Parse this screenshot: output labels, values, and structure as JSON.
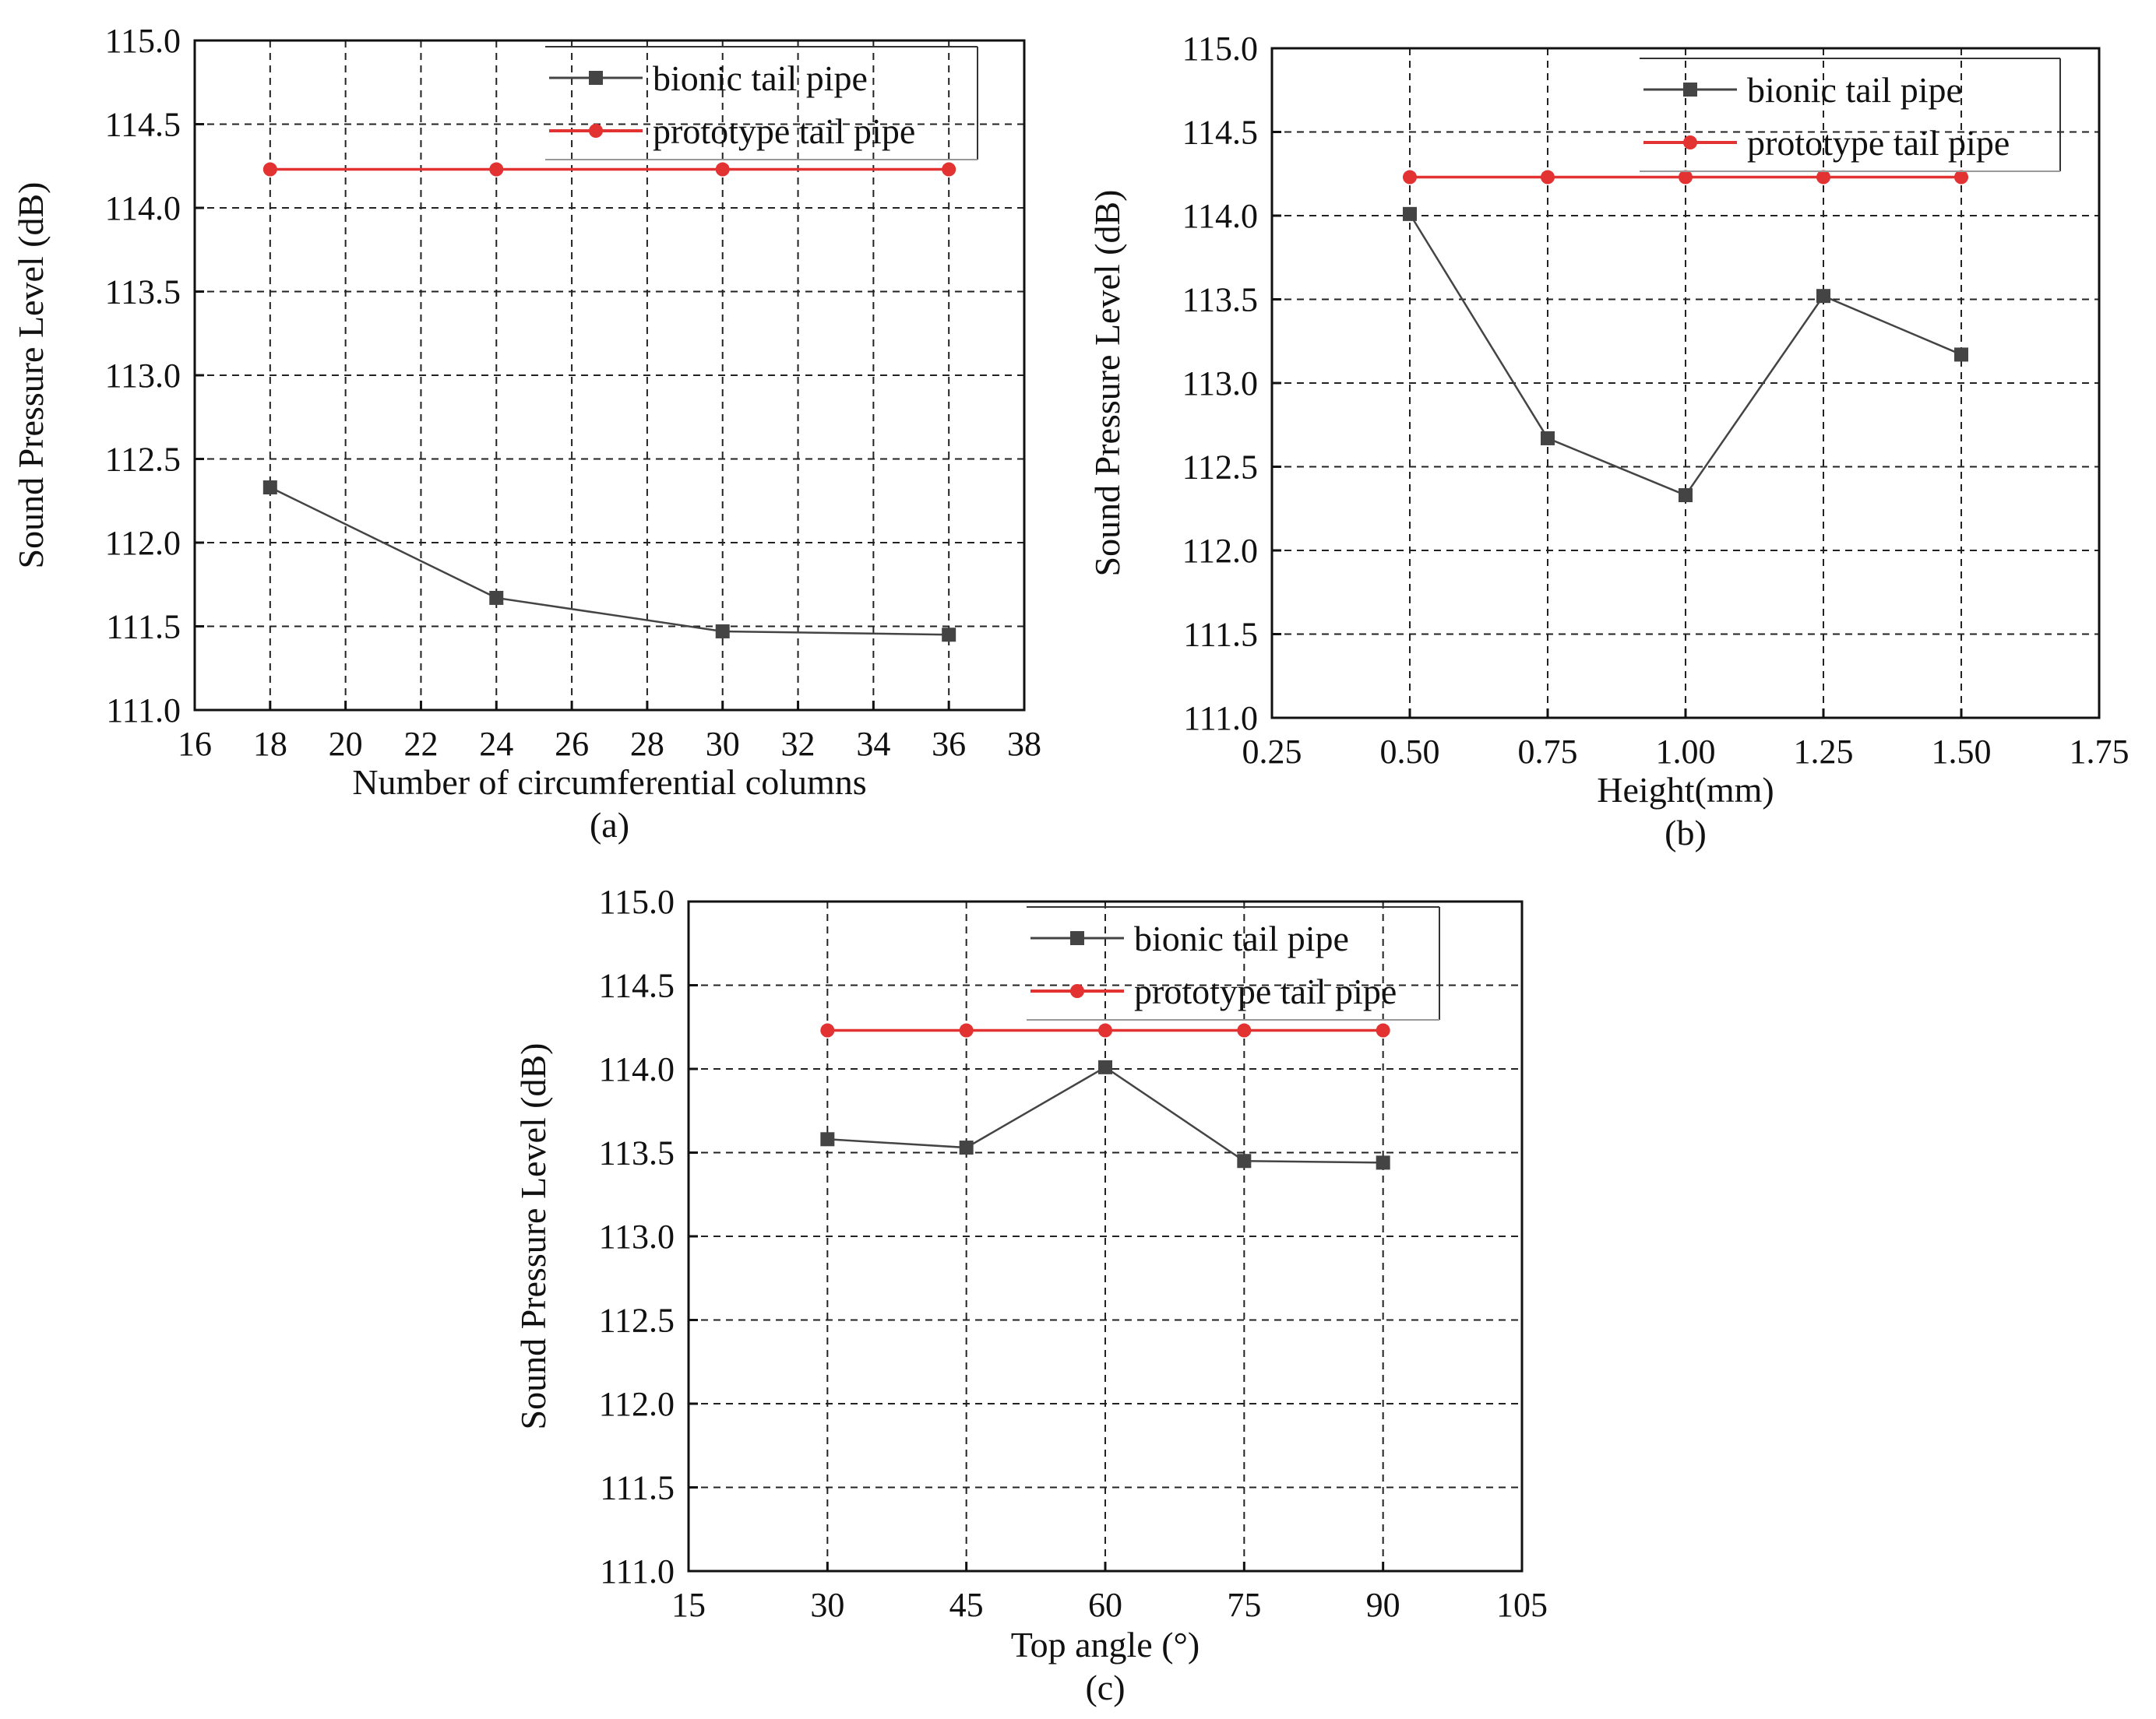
{
  "colors": {
    "bionic": "#444444",
    "prototype": "#e23232"
  },
  "chart_data": [
    {
      "type": "line",
      "panel_label": "(a)",
      "xlabel": "Number of circumferential columns",
      "ylabel": "Sound Pressure Level (dB)",
      "xlim": [
        16,
        38
      ],
      "ylim": [
        111.0,
        115.0
      ],
      "xticks": [
        "16",
        "18",
        "20",
        "22",
        "24",
        "26",
        "28",
        "30",
        "32",
        "34",
        "36",
        "38"
      ],
      "yticks": [
        "111.0",
        "111.5",
        "112.0",
        "112.5",
        "113.0",
        "113.5",
        "114.0",
        "114.5",
        "115.0"
      ],
      "x": [
        18,
        24,
        30,
        36
      ],
      "series": [
        {
          "name": "bionic tail pipe",
          "values": [
            112.33,
            111.67,
            111.47,
            111.45
          ]
        },
        {
          "name": "prototype tail pipe",
          "values": [
            114.23,
            114.23,
            114.23,
            114.23
          ]
        }
      ],
      "legend": "top-right"
    },
    {
      "type": "line",
      "panel_label": "(b)",
      "xlabel": "Height(mm)",
      "ylabel": "Sound Pressure Level (dB)",
      "xlim": [
        0.25,
        1.75
      ],
      "ylim": [
        111.0,
        115.0
      ],
      "xticks": [
        "0.25",
        "0.50",
        "0.75",
        "1.00",
        "1.25",
        "1.50",
        "1.75"
      ],
      "yticks": [
        "111.0",
        "111.5",
        "112.0",
        "112.5",
        "113.0",
        "113.5",
        "114.0",
        "114.5",
        "115.0"
      ],
      "x": [
        0.5,
        0.75,
        1.0,
        1.25,
        1.5
      ],
      "series": [
        {
          "name": "bionic tail pipe",
          "values": [
            114.01,
            112.67,
            112.33,
            113.52,
            113.17
          ]
        },
        {
          "name": "prototype tail pipe",
          "values": [
            114.23,
            114.23,
            114.23,
            114.23,
            114.23
          ]
        }
      ],
      "legend": "top-right"
    },
    {
      "type": "line",
      "panel_label": "(c)",
      "xlabel": "Top angle (°)",
      "ylabel": "Sound Pressure Level (dB)",
      "xlim": [
        15,
        105
      ],
      "ylim": [
        111.0,
        115.0
      ],
      "xticks": [
        "15",
        "30",
        "45",
        "60",
        "75",
        "90",
        "105"
      ],
      "yticks": [
        "111.0",
        "111.5",
        "112.0",
        "112.5",
        "113.0",
        "113.5",
        "114.0",
        "114.5",
        "115.0"
      ],
      "x": [
        30,
        45,
        60,
        75,
        90
      ],
      "series": [
        {
          "name": "bionic tail pipe",
          "values": [
            113.58,
            113.53,
            114.01,
            113.45,
            113.44
          ]
        },
        {
          "name": "prototype tail pipe",
          "values": [
            114.23,
            114.23,
            114.23,
            114.23,
            114.23
          ]
        }
      ],
      "legend": "top-right"
    }
  ]
}
